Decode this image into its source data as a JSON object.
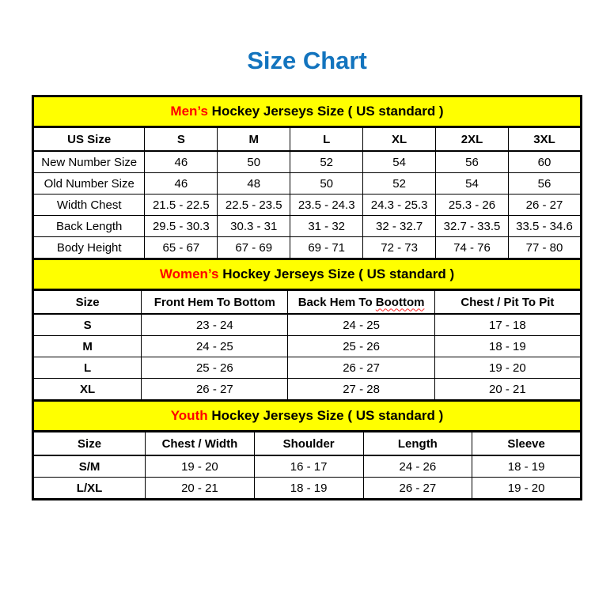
{
  "title": "Size Chart",
  "colors": {
    "title_blue": "#1374be",
    "banner_yellow": "#ffff00",
    "highlight_red": "#ff0000",
    "border_black": "#000000"
  },
  "men": {
    "banner_highlight": "Men’s",
    "banner_rest": " Hockey Jerseys Size ( US standard )",
    "col_headers": [
      "US Size",
      "S",
      "M",
      "L",
      "XL",
      "2XL",
      "3XL"
    ],
    "rows": [
      [
        "New Number Size",
        "46",
        "50",
        "52",
        "54",
        "56",
        "60"
      ],
      [
        "Old Number Size",
        "46",
        "48",
        "50",
        "52",
        "54",
        "56"
      ],
      [
        "Width Chest",
        "21.5 - 22.5",
        "22.5 - 23.5",
        "23.5 - 24.3",
        "24.3 - 25.3",
        "25.3 - 26",
        "26 - 27"
      ],
      [
        "Back Length",
        "29.5 - 30.3",
        "30.3 - 31",
        "31 - 32",
        "32 - 32.7",
        "32.7 - 33.5",
        "33.5 - 34.6"
      ],
      [
        "Body Height",
        "65 - 67",
        "67 - 69",
        "69 - 71",
        "72 - 73",
        "74 - 76",
        "77 - 80"
      ]
    ]
  },
  "women": {
    "banner_highlight": "Women’s",
    "banner_rest": " Hockey Jerseys Size ( US standard )",
    "col_header_size": "Size",
    "col_header_front_hem": "Front Hem To Bottom",
    "back_hem_prefix": "Back Hem To ",
    "back_hem_word": "Boottom",
    "col_header_chest": "Chest / Pit To Pit",
    "rows": [
      [
        "S",
        "23 - 24",
        "24 - 25",
        "17 - 18"
      ],
      [
        "M",
        "24 - 25",
        "25 - 26",
        "18 - 19"
      ],
      [
        "L",
        "25 - 26",
        "26 - 27",
        "19 - 20"
      ],
      [
        "XL",
        "26 - 27",
        "27 - 28",
        "20 - 21"
      ]
    ]
  },
  "youth": {
    "banner_highlight": "Youth",
    "banner_rest": " Hockey Jerseys Size ( US standard )",
    "col_headers": [
      "Size",
      "Chest / Width",
      "Shoulder",
      "Length",
      "Sleeve"
    ],
    "rows": [
      [
        "S/M",
        "19 - 20",
        "16 - 17",
        "24 - 26",
        "18 - 19"
      ],
      [
        "L/XL",
        "20 - 21",
        "18 - 19",
        "26 - 27",
        "19 - 20"
      ]
    ]
  }
}
